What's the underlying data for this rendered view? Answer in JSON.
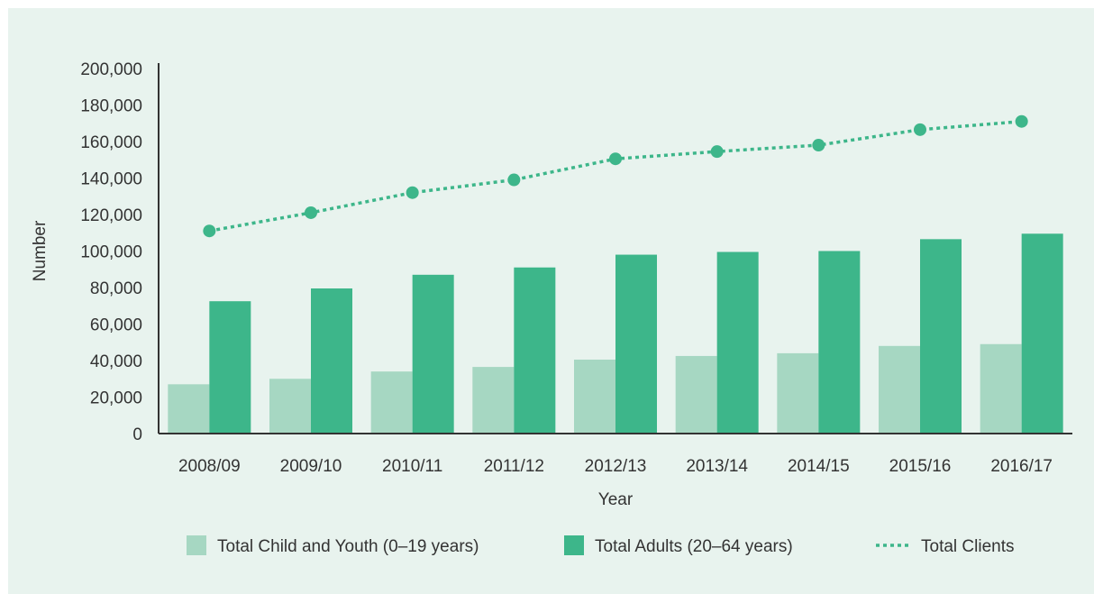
{
  "chart_data": {
    "type": "bar",
    "title": "",
    "xlabel": "Year",
    "ylabel": "Number",
    "ylim": [
      0,
      200000
    ],
    "yticks": [
      0,
      20000,
      40000,
      60000,
      80000,
      100000,
      120000,
      140000,
      160000,
      180000,
      200000
    ],
    "ytick_labels": [
      "0",
      "20,000",
      "40,000",
      "60,000",
      "80,000",
      "100,000",
      "120,000",
      "140,000",
      "160,000",
      "180,000",
      "200,000"
    ],
    "categories": [
      "2008/09",
      "2009/10",
      "2010/11",
      "2011/12",
      "2012/13",
      "2013/14",
      "2014/15",
      "2015/16",
      "2016/17"
    ],
    "grid": false,
    "legend_position": "bottom",
    "series": [
      {
        "name": "Total Child and Youth (0–19 years)",
        "kind": "bar",
        "color": "#a6d7c2",
        "values": [
          27000,
          30000,
          34000,
          36500,
          40500,
          42500,
          44000,
          48000,
          49000
        ]
      },
      {
        "name": "Total Adults (20–64 years)",
        "kind": "bar",
        "color": "#3db68a",
        "values": [
          72500,
          79500,
          87000,
          91000,
          98000,
          99500,
          100000,
          106500,
          109500
        ]
      },
      {
        "name": "Total Clients",
        "kind": "line",
        "style": "dotted",
        "color": "#3db68a",
        "values": [
          111000,
          121000,
          132000,
          139000,
          150500,
          154500,
          158000,
          166500,
          171000
        ]
      }
    ]
  }
}
